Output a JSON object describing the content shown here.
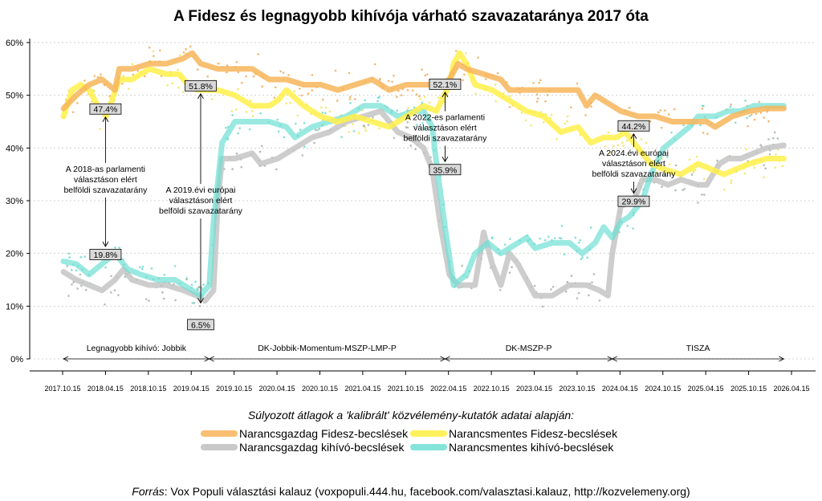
{
  "title": "A Fidesz és legnagyobb kihívója várható szavazataránya 2017 óta",
  "colors": {
    "fidesz_rich": "#f7b55a",
    "challenger_rich": "#c4c4c4",
    "fidesz_poor": "#fff04a",
    "challenger_poor": "#6fe0d4",
    "grid": "#d0d0d0"
  },
  "chart_data": {
    "type": "line",
    "title": "A Fidesz és legnagyobb kihívója várható szavazataránya 2017 óta",
    "ylabel": "",
    "xlabel": "",
    "ylim": [
      0,
      60
    ],
    "xlim": [
      2017.79,
      2026.29
    ],
    "y_ticks": [
      0,
      10,
      20,
      30,
      40,
      50,
      60
    ],
    "y_tick_labels": [
      "0%",
      "10%",
      "20%",
      "30%",
      "40%",
      "50%",
      "60%"
    ],
    "x_ticks": [
      2017.79,
      2018.29,
      2018.79,
      2019.29,
      2019.79,
      2020.29,
      2020.79,
      2021.29,
      2021.79,
      2022.29,
      2022.79,
      2023.29,
      2023.79,
      2024.29,
      2024.79,
      2025.29,
      2025.79,
      2026.29
    ],
    "x_tick_labels": [
      "2017.10.15",
      "2018.04.15",
      "2018.10.15",
      "2019.04.15",
      "2019.10.15",
      "2020.04.15",
      "2020.10.15",
      "2021.04.15",
      "2021.10.15",
      "2022.04.15",
      "2022.10.15",
      "2023.04.15",
      "2023.10.15",
      "2024.04.15",
      "2024.10.15",
      "2025.04.15",
      "2025.10.15",
      "2026.04.15"
    ],
    "series": [
      {
        "name": "Narancsgazdag Fidesz-becslések",
        "key": "fidesz_rich",
        "points": [
          [
            2017.8,
            47.5
          ],
          [
            2017.95,
            50
          ],
          [
            2018.1,
            52
          ],
          [
            2018.25,
            53
          ],
          [
            2018.4,
            51
          ],
          [
            2018.45,
            55
          ],
          [
            2018.6,
            55
          ],
          [
            2018.8,
            56
          ],
          [
            2019.0,
            56
          ],
          [
            2019.2,
            57
          ],
          [
            2019.3,
            58
          ],
          [
            2019.4,
            56
          ],
          [
            2019.6,
            55
          ],
          [
            2019.8,
            55
          ],
          [
            2020.0,
            55
          ],
          [
            2020.2,
            53
          ],
          [
            2020.4,
            53
          ],
          [
            2020.6,
            52
          ],
          [
            2020.8,
            52
          ],
          [
            2021.0,
            51
          ],
          [
            2021.2,
            52
          ],
          [
            2021.4,
            53
          ],
          [
            2021.6,
            51
          ],
          [
            2021.8,
            52
          ],
          [
            2022.0,
            52
          ],
          [
            2022.2,
            52
          ],
          [
            2022.3,
            53
          ],
          [
            2022.4,
            56
          ],
          [
            2022.5,
            55
          ],
          [
            2022.7,
            54
          ],
          [
            2022.9,
            53
          ],
          [
            2023.0,
            51
          ],
          [
            2023.2,
            51
          ],
          [
            2023.4,
            51
          ],
          [
            2023.6,
            51
          ],
          [
            2023.8,
            51
          ],
          [
            2023.9,
            48
          ],
          [
            2024.0,
            50
          ],
          [
            2024.1,
            49
          ],
          [
            2024.2,
            48
          ],
          [
            2024.3,
            47
          ],
          [
            2024.5,
            46
          ],
          [
            2024.7,
            46
          ],
          [
            2024.9,
            45
          ],
          [
            2025.1,
            45
          ],
          [
            2025.3,
            45
          ],
          [
            2025.4,
            44
          ],
          [
            2025.6,
            46
          ],
          [
            2025.8,
            47
          ],
          [
            2026.0,
            47.5
          ],
          [
            2026.2,
            47.5
          ]
        ]
      },
      {
        "name": "Narancsgazdag kihívó-becslések",
        "key": "challenger_rich",
        "points": [
          [
            2017.8,
            16.5
          ],
          [
            2017.95,
            15
          ],
          [
            2018.1,
            14
          ],
          [
            2018.25,
            13
          ],
          [
            2018.4,
            15
          ],
          [
            2018.5,
            17
          ],
          [
            2018.6,
            15
          ],
          [
            2018.8,
            14
          ],
          [
            2019.0,
            14
          ],
          [
            2019.2,
            13
          ],
          [
            2019.35,
            12
          ],
          [
            2019.45,
            11
          ],
          [
            2019.55,
            13
          ],
          [
            2019.6,
            30
          ],
          [
            2019.65,
            38
          ],
          [
            2019.8,
            38
          ],
          [
            2020.0,
            39
          ],
          [
            2020.1,
            37
          ],
          [
            2020.3,
            38
          ],
          [
            2020.5,
            40
          ],
          [
            2020.7,
            42
          ],
          [
            2020.9,
            43
          ],
          [
            2021.1,
            45
          ],
          [
            2021.3,
            46
          ],
          [
            2021.5,
            47
          ],
          [
            2021.7,
            43
          ],
          [
            2021.85,
            42
          ],
          [
            2022.0,
            40
          ],
          [
            2022.1,
            36
          ],
          [
            2022.2,
            25
          ],
          [
            2022.3,
            16
          ],
          [
            2022.4,
            14
          ],
          [
            2022.5,
            14
          ],
          [
            2022.6,
            14
          ],
          [
            2022.7,
            24
          ],
          [
            2022.8,
            18
          ],
          [
            2022.9,
            14
          ],
          [
            2023.0,
            20
          ],
          [
            2023.1,
            18
          ],
          [
            2023.3,
            12
          ],
          [
            2023.5,
            12
          ],
          [
            2023.7,
            14
          ],
          [
            2023.9,
            14
          ],
          [
            2024.05,
            13
          ],
          [
            2024.15,
            12
          ],
          [
            2024.2,
            20
          ],
          [
            2024.3,
            29
          ],
          [
            2024.45,
            30
          ],
          [
            2024.55,
            34
          ],
          [
            2024.7,
            34
          ],
          [
            2024.85,
            33
          ],
          [
            2025.0,
            34
          ],
          [
            2025.2,
            33
          ],
          [
            2025.3,
            33
          ],
          [
            2025.45,
            37
          ],
          [
            2025.55,
            38
          ],
          [
            2025.7,
            38
          ],
          [
            2025.85,
            39
          ],
          [
            2026.0,
            40
          ],
          [
            2026.2,
            40.5
          ]
        ]
      },
      {
        "name": "Narancsmentes Fidesz-becslések",
        "key": "fidesz_poor",
        "points": [
          [
            2017.8,
            46
          ],
          [
            2017.9,
            51
          ],
          [
            2018.0,
            52
          ],
          [
            2018.1,
            51
          ],
          [
            2018.2,
            48
          ],
          [
            2018.3,
            46
          ],
          [
            2018.45,
            53
          ],
          [
            2018.6,
            53
          ],
          [
            2018.8,
            55
          ],
          [
            2019.0,
            54
          ],
          [
            2019.15,
            54
          ],
          [
            2019.25,
            52
          ],
          [
            2019.4,
            51
          ],
          [
            2019.6,
            51
          ],
          [
            2019.8,
            50
          ],
          [
            2020.0,
            48
          ],
          [
            2020.2,
            48
          ],
          [
            2020.3,
            49
          ],
          [
            2020.4,
            51
          ],
          [
            2020.6,
            48
          ],
          [
            2020.8,
            46
          ],
          [
            2021.0,
            45
          ],
          [
            2021.2,
            46
          ],
          [
            2021.4,
            45
          ],
          [
            2021.6,
            44
          ],
          [
            2021.8,
            46
          ],
          [
            2022.0,
            48
          ],
          [
            2022.15,
            47
          ],
          [
            2022.3,
            52
          ],
          [
            2022.35,
            56
          ],
          [
            2022.42,
            58
          ],
          [
            2022.5,
            56
          ],
          [
            2022.6,
            52
          ],
          [
            2022.8,
            51
          ],
          [
            2023.0,
            49
          ],
          [
            2023.2,
            47
          ],
          [
            2023.4,
            46
          ],
          [
            2023.6,
            43
          ],
          [
            2023.8,
            44
          ],
          [
            2023.95,
            41
          ],
          [
            2024.1,
            42
          ],
          [
            2024.25,
            42
          ],
          [
            2024.35,
            43
          ],
          [
            2024.5,
            40
          ],
          [
            2024.65,
            37
          ],
          [
            2024.8,
            36
          ],
          [
            2025.0,
            35
          ],
          [
            2025.2,
            37
          ],
          [
            2025.35,
            36
          ],
          [
            2025.5,
            35
          ],
          [
            2025.65,
            36
          ],
          [
            2025.8,
            37
          ],
          [
            2026.0,
            38
          ],
          [
            2026.2,
            38
          ]
        ]
      },
      {
        "name": "Narancsmentes kihívó-becslések",
        "key": "challenger_poor",
        "points": [
          [
            2017.8,
            18.5
          ],
          [
            2017.95,
            18
          ],
          [
            2018.1,
            16
          ],
          [
            2018.25,
            18
          ],
          [
            2018.4,
            20
          ],
          [
            2018.55,
            17
          ],
          [
            2018.7,
            16
          ],
          [
            2018.9,
            15
          ],
          [
            2019.1,
            15
          ],
          [
            2019.3,
            13
          ],
          [
            2019.4,
            12
          ],
          [
            2019.5,
            14
          ],
          [
            2019.55,
            26
          ],
          [
            2019.65,
            41
          ],
          [
            2019.8,
            45
          ],
          [
            2020.0,
            45
          ],
          [
            2020.2,
            45
          ],
          [
            2020.4,
            44
          ],
          [
            2020.5,
            42
          ],
          [
            2020.7,
            44
          ],
          [
            2020.9,
            45
          ],
          [
            2021.1,
            46
          ],
          [
            2021.3,
            48
          ],
          [
            2021.5,
            48
          ],
          [
            2021.7,
            46
          ],
          [
            2021.9,
            47
          ],
          [
            2022.0,
            47
          ],
          [
            2022.1,
            44
          ],
          [
            2022.15,
            37
          ],
          [
            2022.25,
            25
          ],
          [
            2022.35,
            14
          ],
          [
            2022.5,
            16
          ],
          [
            2022.6,
            20
          ],
          [
            2022.75,
            22
          ],
          [
            2022.9,
            20
          ],
          [
            2023.0,
            21
          ],
          [
            2023.2,
            23
          ],
          [
            2023.3,
            21
          ],
          [
            2023.5,
            22
          ],
          [
            2023.7,
            22
          ],
          [
            2023.85,
            20
          ],
          [
            2024.0,
            22
          ],
          [
            2024.1,
            25
          ],
          [
            2024.2,
            23
          ],
          [
            2024.3,
            26
          ],
          [
            2024.4,
            27
          ],
          [
            2024.55,
            30
          ],
          [
            2024.65,
            35
          ],
          [
            2024.8,
            40
          ],
          [
            2024.95,
            42
          ],
          [
            2025.1,
            44
          ],
          [
            2025.2,
            46
          ],
          [
            2025.4,
            46
          ],
          [
            2025.55,
            47
          ],
          [
            2025.7,
            47
          ],
          [
            2025.85,
            48
          ],
          [
            2026.0,
            48
          ],
          [
            2026.2,
            48
          ]
        ]
      }
    ],
    "annotations": [
      {
        "label": "47.4%",
        "x": 2018.29,
        "y": 47.4,
        "text": [
          "A 2018-as parlamenti",
          "választáson elért",
          "belföldi szavazatarány"
        ],
        "text_x": 2018.29,
        "text_y": 35.5
      },
      {
        "label": "19.8%",
        "x": 2018.29,
        "y": 19.8,
        "text": [],
        "text_x": 2018.29,
        "text_y": 0
      },
      {
        "label": "51.8%",
        "x": 2019.4,
        "y": 51.8,
        "text": [
          "A 2019.évi európai",
          "választáson elért",
          "belföldi szavazatarány"
        ],
        "text_x": 2019.4,
        "text_y": 31.5
      },
      {
        "label": "6.5%",
        "x": 2019.4,
        "y": 6.5,
        "text": [],
        "text_x": 2019.4,
        "text_y": 0
      },
      {
        "label": "52.1%",
        "x": 2022.25,
        "y": 52.1,
        "text": [
          "A 2022-es parlamenti",
          "választáson elért",
          "belföldi szavazatarány"
        ],
        "text_x": 2022.25,
        "text_y": 45.3
      },
      {
        "label": "35.9%",
        "x": 2022.25,
        "y": 35.9,
        "text": [],
        "text_x": 2022.25,
        "text_y": 0
      },
      {
        "label": "44.2%",
        "x": 2024.45,
        "y": 44.2,
        "text": [
          "A 2024.évi európai",
          "választáson elért",
          "belföldi szavazatarány"
        ],
        "text_x": 2024.45,
        "text_y": 38.5
      },
      {
        "label": "29.9%",
        "x": 2024.45,
        "y": 29.9,
        "text": [],
        "text_x": 2024.45,
        "text_y": 0
      }
    ],
    "periods": [
      {
        "label": "Legnagyobb kihívó: Jobbik",
        "start": 2017.8,
        "end": 2019.5
      },
      {
        "label": "DK-Jobbik-Momentum-MSZP-LMP-P",
        "start": 2019.5,
        "end": 2022.25
      },
      {
        "label": "DK-MSZP-P",
        "start": 2022.25,
        "end": 2024.2
      },
      {
        "label": "TISZA",
        "start": 2024.2,
        "end": 2026.2
      }
    ],
    "legend_position": "bottom"
  },
  "legend": {
    "title": "Súlyozott átlagok a 'kalibrált' közvélemény-kutatók adatai alapján:",
    "items": [
      {
        "label": "Narancsgazdag Fidesz-becslések",
        "key": "fidesz_rich"
      },
      {
        "label": "Narancsmentes Fidesz-becslések",
        "key": "fidesz_poor"
      },
      {
        "label": "Narancsgazdag kihívó-becslések",
        "key": "challenger_rich"
      },
      {
        "label": "Narancsmentes kihívó-becslések",
        "key": "challenger_poor"
      }
    ]
  },
  "source": {
    "prefix": "Forrás",
    "text": ": Vox Populi választási kalauz (voxpopuli.444.hu, facebook.com/valasztasi.kalauz, http://kozvelemeny.org)"
  }
}
